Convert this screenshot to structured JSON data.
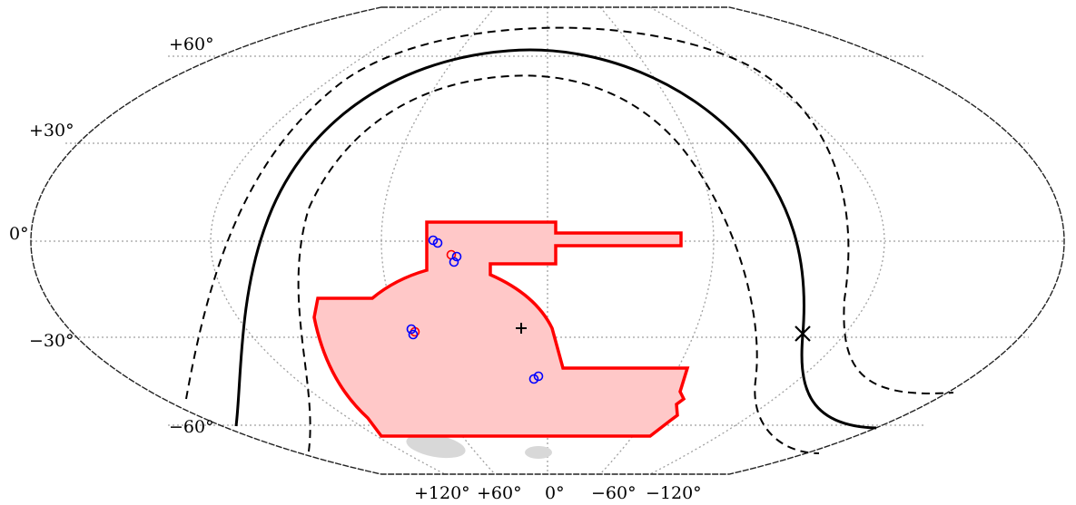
{
  "map": {
    "projection": "mollweide",
    "colors": {
      "footprint_fill": "#ffc8c8",
      "footprint_edge": "#ff0000",
      "curve": "#000000",
      "grid": "#a0a0a0",
      "marker_red": "#ff0000",
      "marker_blue": "#0000ff",
      "patch": "#d8d8d8"
    },
    "dec_labels": [
      "+60°",
      "+30°",
      "0°",
      "−30°",
      "−60°"
    ],
    "ra_labels": [
      "+120°",
      "+60°",
      "0°",
      "−60°",
      "−120°"
    ]
  }
}
